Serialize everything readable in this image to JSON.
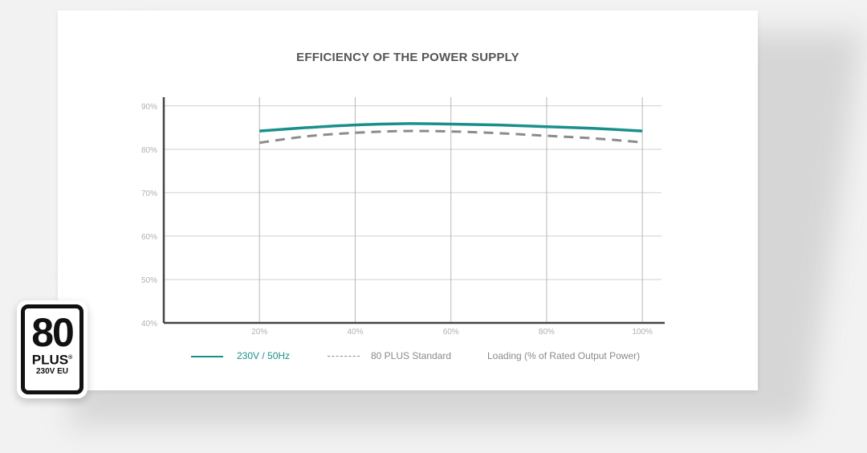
{
  "chart_data": {
    "type": "line",
    "title": "EFFICIENCY OF THE POWER SUPPLY",
    "x": [
      20,
      30,
      40,
      50,
      60,
      70,
      80,
      90,
      100
    ],
    "x_tick_labels": [
      "20%",
      "40%",
      "60%",
      "80%",
      "100%"
    ],
    "x_ticks": [
      20,
      40,
      60,
      80,
      100
    ],
    "y_tick_labels": [
      "40%",
      "50%",
      "60%",
      "70%",
      "80%",
      "90%"
    ],
    "y_ticks": [
      40,
      50,
      60,
      70,
      80,
      90
    ],
    "xlim": [
      0,
      104
    ],
    "ylim": [
      40,
      92
    ],
    "series": [
      {
        "name": "230V / 50Hz",
        "color": "#1a8f8c",
        "style": "solid",
        "values": [
          84.2,
          85.0,
          85.6,
          85.9,
          85.8,
          85.6,
          85.2,
          84.8,
          84.2
        ]
      },
      {
        "name": "80 PLUS Standard",
        "color": "#8c8c8c",
        "style": "dashed",
        "values": [
          81.5,
          83.0,
          83.8,
          84.2,
          84.1,
          83.7,
          83.1,
          82.5,
          81.6
        ]
      }
    ],
    "xlabel": "Loading (% of Rated Output Power)",
    "grid": true,
    "legend": "bottom"
  },
  "badge": {
    "number": "80",
    "plus": "PLUS",
    "reg": "®",
    "sub": "230V EU"
  }
}
